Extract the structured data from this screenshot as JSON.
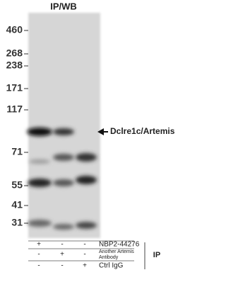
{
  "header": {
    "title": "IP/WB"
  },
  "markers": [
    "460",
    "268",
    "238",
    "171",
    "117",
    "71",
    "55",
    "41",
    "31"
  ],
  "band_label": "Dclre1c/Artemis",
  "table": {
    "rows": [
      {
        "cells": [
          "+",
          "-",
          "-"
        ],
        "label": [
          "NBP2-44276"
        ]
      },
      {
        "cells": [
          "-",
          "+",
          "-"
        ],
        "label": [
          "Another Artemis",
          "Antibody"
        ]
      },
      {
        "cells": [
          "-",
          "-",
          "+"
        ],
        "label": [
          "Ctrl IgG"
        ]
      }
    ],
    "group": "IP"
  }
}
